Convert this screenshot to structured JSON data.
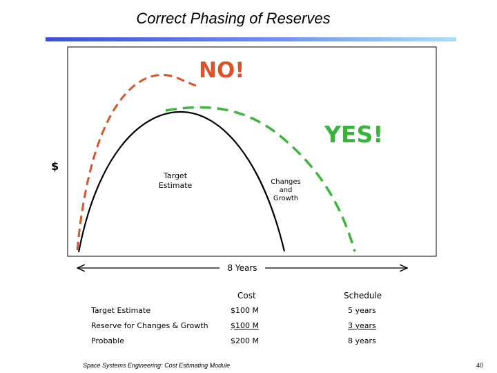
{
  "slide": {
    "title": "Correct Phasing of Reserves",
    "footer": "Space Systems Engineering: Cost Estimating Module",
    "page_number": "40"
  },
  "diagram": {
    "y_axis_label": "$",
    "no_label": "NO!",
    "yes_label": "YES!",
    "target_estimate_label_line1": "Target",
    "target_estimate_label_line2": "Estimate",
    "changes_label_line1": "Changes",
    "changes_label_line2": "and",
    "changes_label_line3": "Growth",
    "duration_label": "8 Years",
    "colors": {
      "target_curve": "#000000",
      "no_curve": "#d9532b",
      "yes_curve": "#3fb33f",
      "no_text": "#d9532b",
      "yes_text": "#39b339"
    }
  },
  "table": {
    "header_cost": "Cost",
    "header_schedule": "Schedule",
    "rows": [
      {
        "label": "Target Estimate",
        "cost": "$100 M",
        "schedule": "5 years"
      },
      {
        "label": "Reserve for Changes & Growth",
        "cost": "$100 M",
        "schedule": "3 years"
      },
      {
        "label": "Probable",
        "cost": "$200 M",
        "schedule": "8 years"
      }
    ]
  }
}
